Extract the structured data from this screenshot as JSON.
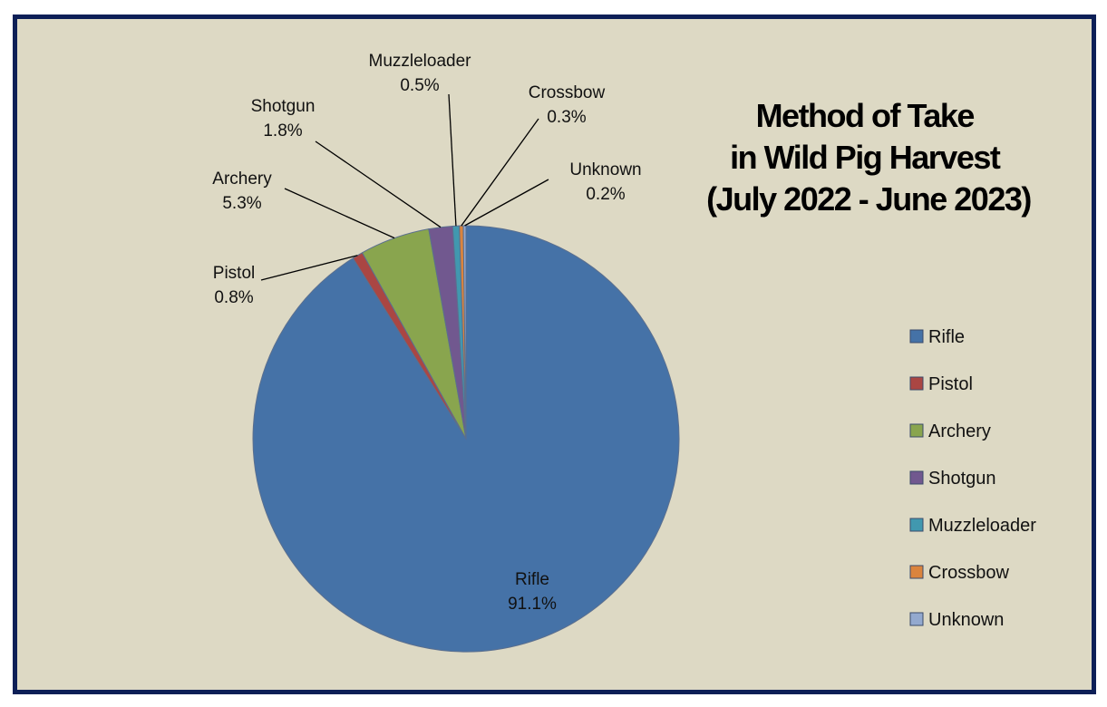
{
  "chart_data": {
    "type": "pie",
    "title": [
      "Method of Take",
      "in Wild Pig Harvest",
      "(July 2022 - June 2023)"
    ],
    "categories": [
      "Rifle",
      "Pistol",
      "Archery",
      "Shotgun",
      "Muzzleloader",
      "Crossbow",
      "Unknown"
    ],
    "values": [
      91.1,
      0.8,
      5.3,
      1.8,
      0.5,
      0.3,
      0.2
    ],
    "value_labels": [
      "91.1%",
      "0.8%",
      "5.3%",
      "1.8%",
      "0.5%",
      "0.3%",
      "0.2%"
    ],
    "colors": [
      "#4572a7",
      "#aa4643",
      "#89a54e",
      "#71588f",
      "#4198af",
      "#db843d",
      "#93a9cf"
    ],
    "legend": {
      "position": "right",
      "entries": [
        "Rifle",
        "Pistol",
        "Archery",
        "Shotgun",
        "Muzzleloader",
        "Crossbow",
        "Unknown"
      ]
    }
  }
}
